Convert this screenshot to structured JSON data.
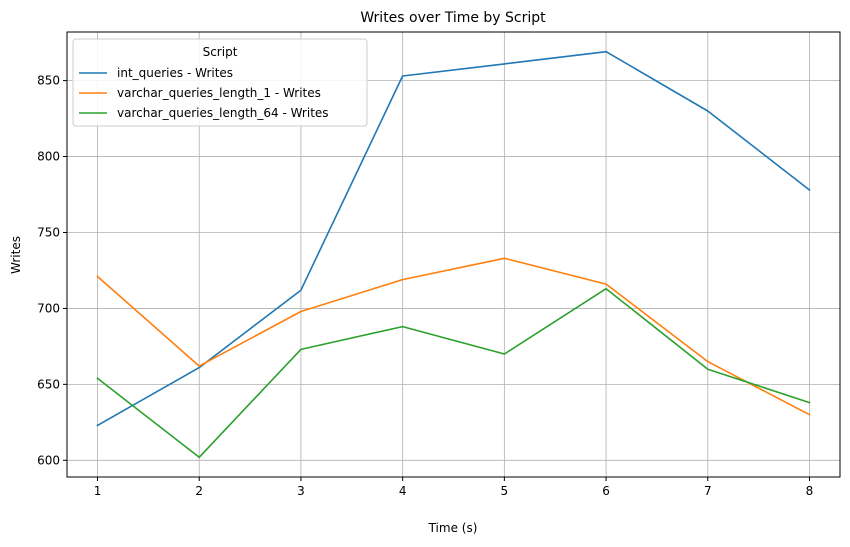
{
  "chart_data": {
    "type": "line",
    "title": "Writes over Time by Script",
    "xlabel": "Time (s)",
    "ylabel": "Writes",
    "x": [
      1,
      2,
      3,
      4,
      5,
      6,
      7,
      8
    ],
    "xticks": [
      "1",
      "2",
      "3",
      "4",
      "5",
      "6",
      "7",
      "8"
    ],
    "yticks": [
      "600",
      "650",
      "700",
      "750",
      "800",
      "850"
    ],
    "xlim": [
      0.7,
      8.3
    ],
    "ylim": [
      589,
      882
    ],
    "grid": true,
    "legend": {
      "title": "Script",
      "placement": "top-left"
    },
    "series": [
      {
        "name": "int_queries - Writes",
        "color": "#1f77b4",
        "values": [
          623,
          661,
          712,
          853,
          861,
          869,
          830,
          778
        ]
      },
      {
        "name": "varchar_queries_length_1 - Writes",
        "color": "#ff7f0e",
        "values": [
          721,
          662,
          698,
          719,
          733,
          716,
          665,
          630
        ]
      },
      {
        "name": "varchar_queries_length_64 - Writes",
        "color": "#2ca02c",
        "values": [
          654,
          602,
          673,
          688,
          670,
          713,
          660,
          638
        ]
      }
    ]
  }
}
